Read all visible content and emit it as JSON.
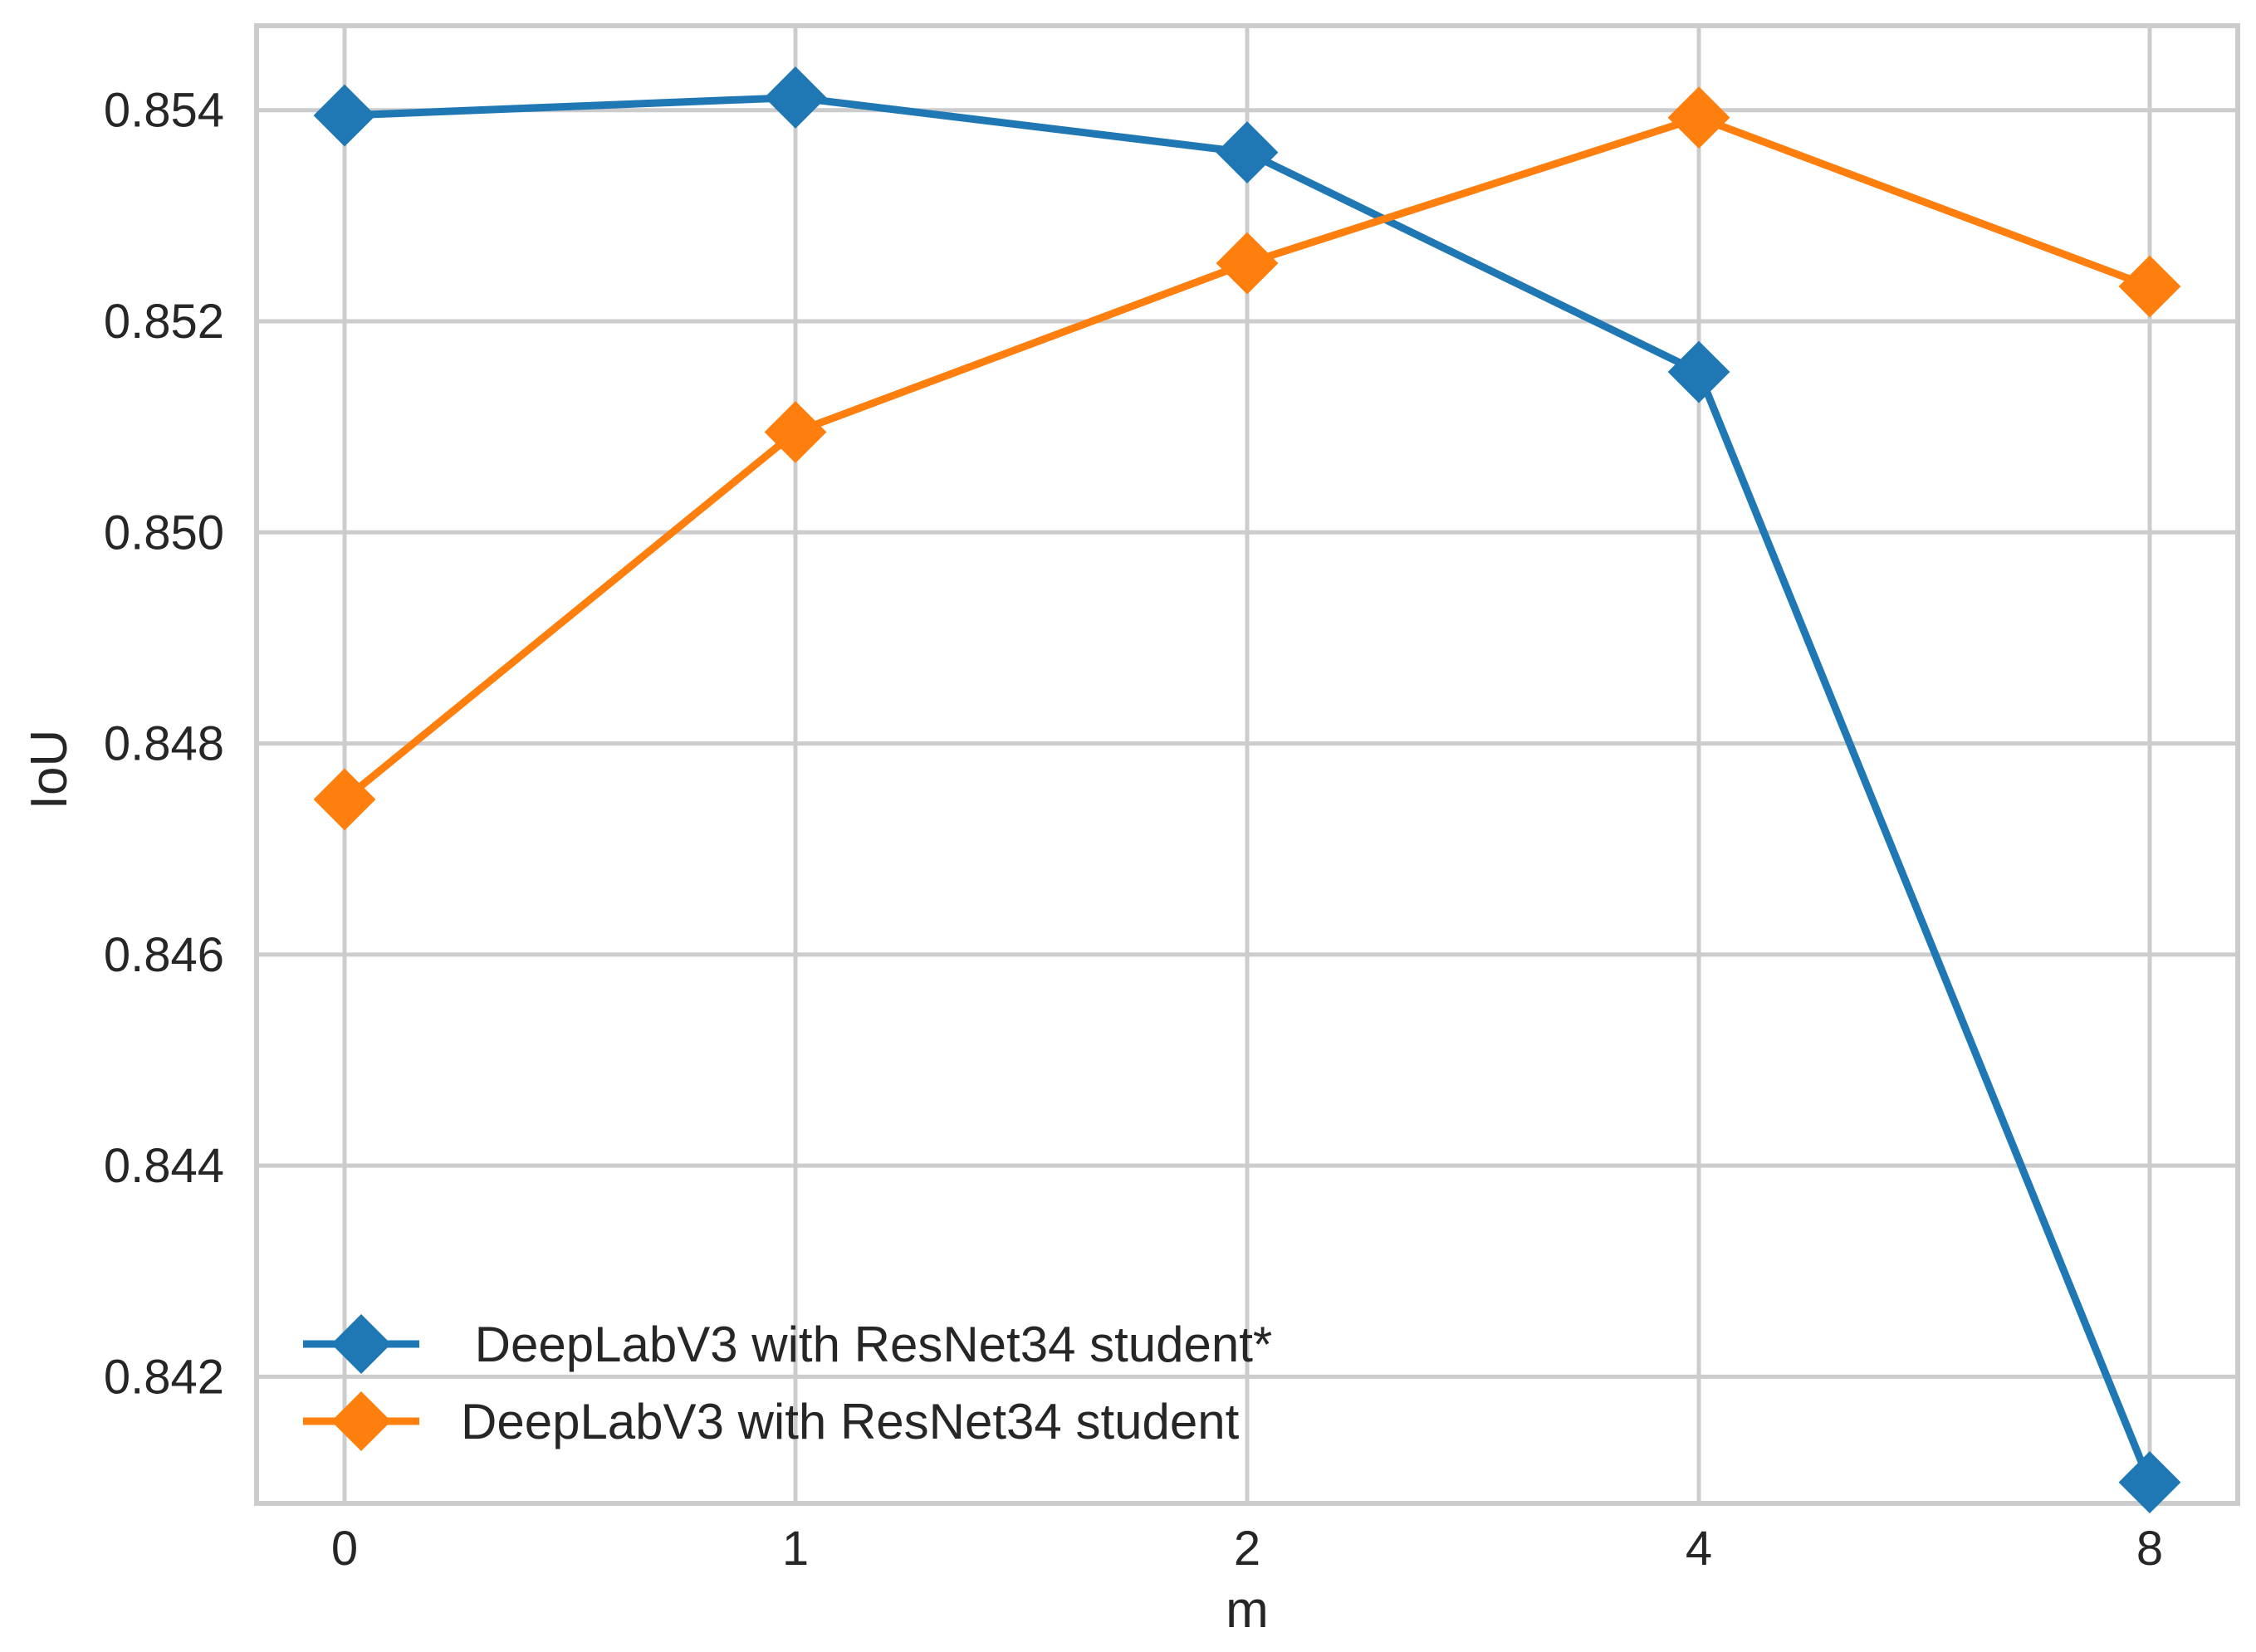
{
  "chart_data": {
    "type": "line",
    "title": "",
    "xlabel": "m",
    "ylabel": "IoU",
    "categories": [
      "0",
      "1",
      "2",
      "4",
      "8"
    ],
    "ylim": [
      0.8408,
      0.8548
    ],
    "yticks": [
      "0.842",
      "0.844",
      "0.846",
      "0.848",
      "0.850",
      "0.852",
      "0.854"
    ],
    "grid": true,
    "legend_position": "lower-left",
    "series": [
      {
        "name": " DeepLabV3 with ResNet34 student*",
        "color": "#1f77b4",
        "marker": "diamond",
        "values": [
          0.85395,
          0.85412,
          0.8536,
          0.85152,
          0.841
        ]
      },
      {
        "name": "DeepLabV3 with ResNet34 student",
        "color": "#ff7f0e",
        "marker": "diamond",
        "values": [
          0.84747,
          0.85095,
          0.85255,
          0.85393,
          0.85233
        ]
      }
    ]
  }
}
